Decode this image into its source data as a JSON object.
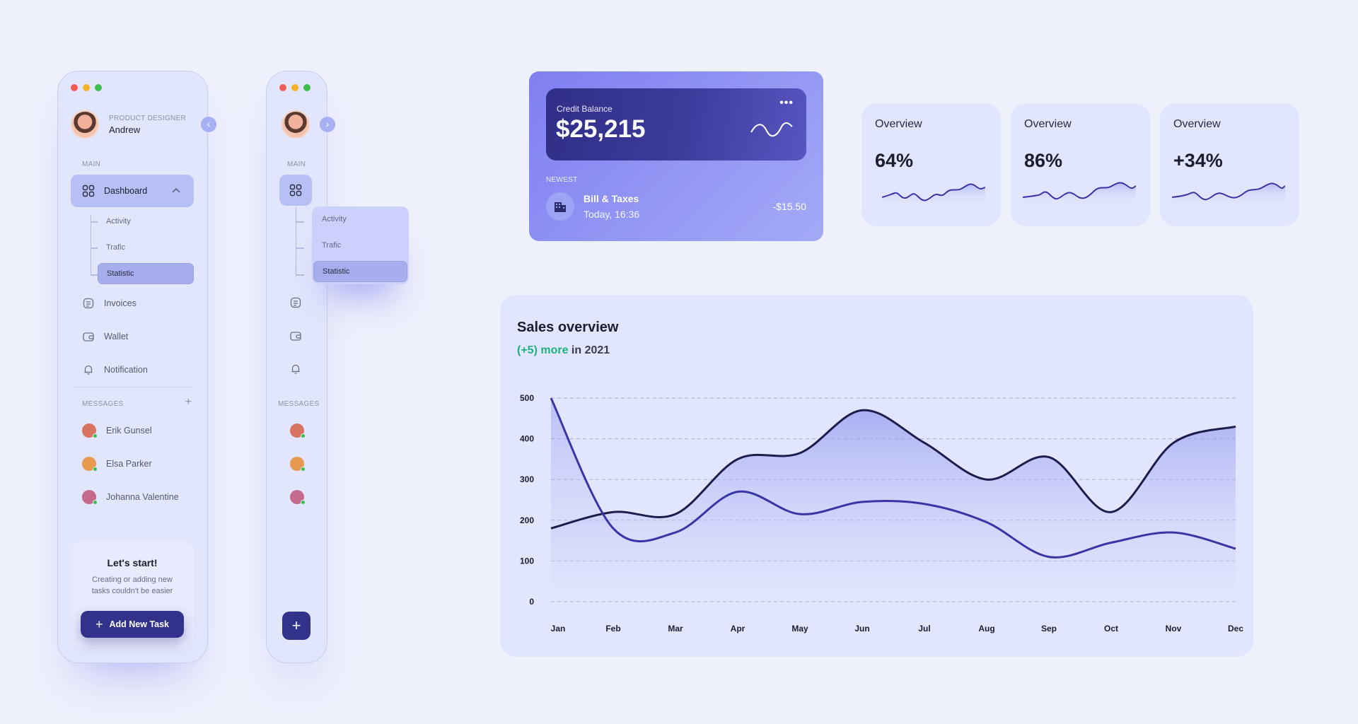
{
  "sidebar": {
    "user": {
      "role": "PRODUCT DESIGNER",
      "name": "Andrew"
    },
    "main_label": "MAIN",
    "dashboard_label": "Dashboard",
    "submenu": [
      "Activity",
      "Trafic",
      "Statistic"
    ],
    "items": [
      {
        "label": "Invoices",
        "icon": "invoice-icon"
      },
      {
        "label": "Wallet",
        "icon": "wallet-icon"
      },
      {
        "label": "Notification",
        "icon": "bell-icon"
      }
    ],
    "messages_label": "MESSAGES",
    "messages": [
      {
        "name": "Erik Gunsel",
        "color": "#d7735f"
      },
      {
        "name": "Elsa Parker",
        "color": "#e59a4f"
      },
      {
        "name": "Johanna Valentine",
        "color": "#c46a8a"
      }
    ],
    "start_card": {
      "title": "Let's start!",
      "text": "Creating or adding new tasks couldn't be easier",
      "button": "Add New Task"
    }
  },
  "mini_sidebar": {
    "main_label": "MAIN",
    "messages_label": "MESSAGES",
    "flyout": [
      "Activity",
      "Trafic",
      "Statistic"
    ]
  },
  "credit": {
    "label": "Credit Balance",
    "amount": "$25,215",
    "newest_label": "NEWEST",
    "transaction": {
      "title": "Bill & Taxes",
      "time": "Today, 16:36",
      "amount": "-$15.50"
    }
  },
  "overview": [
    {
      "title": "Overview",
      "value": "64%"
    },
    {
      "title": "Overview",
      "value": "86%"
    },
    {
      "title": "Overview",
      "value": "+34%"
    }
  ],
  "sales": {
    "title": "Sales overview",
    "sub_highlight": "(+5) more",
    "sub_rest": "in 2021"
  },
  "colors": {
    "accent": "#33328a",
    "card_gradient_start": "#7f7ff1",
    "positive": "#1fb27a",
    "series_dark": "#1e1c4d",
    "series_purple": "#3a35a5"
  },
  "chart_data": {
    "type": "area",
    "title": "Sales overview",
    "categories": [
      "Jan",
      "Feb",
      "Mar",
      "Apr",
      "May",
      "Jun",
      "Jul",
      "Aug",
      "Sep",
      "Oct",
      "Nov",
      "Dec"
    ],
    "y_ticks": [
      0,
      100,
      200,
      300,
      400,
      500
    ],
    "ylim": [
      0,
      500
    ],
    "grid": true,
    "series": [
      {
        "values": [
          180,
          220,
          215,
          350,
          365,
          470,
          390,
          300,
          355,
          220,
          390,
          430
        ]
      },
      {
        "values": [
          500,
          180,
          170,
          270,
          215,
          245,
          240,
          195,
          110,
          145,
          170,
          130
        ]
      }
    ]
  }
}
